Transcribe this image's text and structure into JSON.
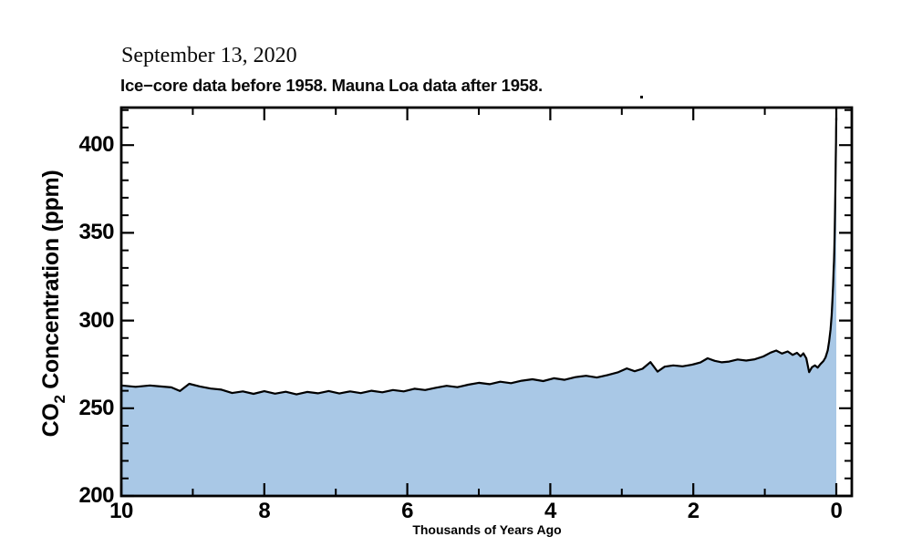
{
  "titles": {
    "date_line": "September 13, 2020",
    "subtitle": "Ice−core data before 1958. Mauna Loa data after 1958."
  },
  "chart_data": {
    "type": "area",
    "title": "September 13, 2020",
    "subtitle": "Ice−core data before 1958. Mauna Loa data after 1958.",
    "xlabel": "Thousands of Years Ago",
    "ylabel": {
      "pre": "CO",
      "sub": "2",
      "post": " Concentration (ppm)"
    },
    "xlim": [
      10,
      -0.217
    ],
    "ylim": [
      200,
      421.4
    ],
    "x_reversed": true,
    "grid": false,
    "legend": "none",
    "ticks_direction": "in",
    "x_ticks_major": [
      10,
      8,
      6,
      4,
      2,
      0
    ],
    "x_ticks_minor": [
      9,
      7,
      5,
      3,
      1
    ],
    "y_ticks_major": [
      200,
      250,
      300,
      350,
      400
    ],
    "y_ticks_minor": [
      210,
      220,
      230,
      240,
      260,
      270,
      280,
      290,
      310,
      320,
      330,
      340,
      360,
      370,
      380,
      390,
      410,
      420
    ],
    "fill_color": "#a9c8e6",
    "line_color": "#000000",
    "frame_color": "#000000",
    "series": [
      {
        "name": "CO2 concentration (ppm)",
        "x": [
          10,
          9.8,
          9.6,
          9.45,
          9.3,
          9.18,
          9.05,
          8.9,
          8.75,
          8.6,
          8.45,
          8.3,
          8.15,
          8.0,
          7.85,
          7.7,
          7.55,
          7.4,
          7.25,
          7.1,
          6.95,
          6.8,
          6.65,
          6.5,
          6.35,
          6.2,
          6.05,
          5.9,
          5.75,
          5.6,
          5.45,
          5.3,
          5.15,
          5.0,
          4.85,
          4.7,
          4.55,
          4.4,
          4.25,
          4.1,
          3.95,
          3.8,
          3.65,
          3.5,
          3.35,
          3.2,
          3.05,
          2.93,
          2.82,
          2.71,
          2.6,
          2.5,
          2.4,
          2.28,
          2.15,
          2.02,
          1.9,
          1.8,
          1.7,
          1.6,
          1.5,
          1.38,
          1.26,
          1.14,
          1.02,
          0.92,
          0.84,
          0.76,
          0.68,
          0.61,
          0.55,
          0.5,
          0.46,
          0.42,
          0.38,
          0.34,
          0.3,
          0.26,
          0.22,
          0.18,
          0.15,
          0.12,
          0.1,
          0.08,
          0.065,
          0.055,
          0.045,
          0.038,
          0.032,
          0.028,
          0.022,
          0.016,
          0.011,
          0.007,
          0.004,
          0.002,
          0
        ],
        "y": [
          263.0,
          262.2,
          263.0,
          262.4,
          261.9,
          259.8,
          263.9,
          262.4,
          261.2,
          260.6,
          258.7,
          259.6,
          258.2,
          259.7,
          258.3,
          259.4,
          257.9,
          259.3,
          258.5,
          259.8,
          258.4,
          259.6,
          258.6,
          260.0,
          259.1,
          260.4,
          259.6,
          261.1,
          260.4,
          261.7,
          262.8,
          262.0,
          263.4,
          264.5,
          263.7,
          265.1,
          264.3,
          265.7,
          266.5,
          265.5,
          267.1,
          266.2,
          267.7,
          268.5,
          267.5,
          268.9,
          270.5,
          272.7,
          271.1,
          272.5,
          276.3,
          270.9,
          273.7,
          274.4,
          273.9,
          274.8,
          276.1,
          278.5,
          277.0,
          276.2,
          276.6,
          277.8,
          277.2,
          277.9,
          279.5,
          281.7,
          282.9,
          281.2,
          282.4,
          280.4,
          281.6,
          279.6,
          281.3,
          278.5,
          270.6,
          273.4,
          274.4,
          273.2,
          275.2,
          276.9,
          279.0,
          283.0,
          288.0,
          295.0,
          303.0,
          311.0,
          320.0,
          328.0,
          334.0,
          340.0,
          352.0,
          365.0,
          379.0,
          392.0,
          402.0,
          409.0,
          415.5
        ]
      }
    ]
  }
}
